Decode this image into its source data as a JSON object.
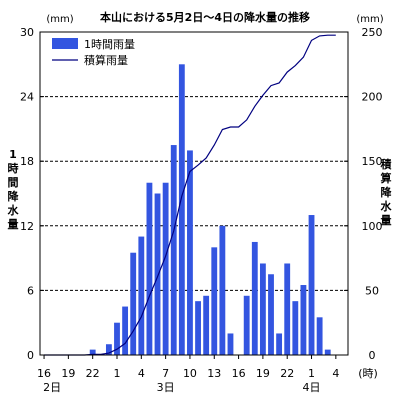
{
  "chart_data": {
    "type": "bar+line",
    "title": "本山における5月2日～4日の降水量の推移",
    "left_unit": "(mm)",
    "right_unit": "(mm)",
    "ylabel_left": "1時間降水量",
    "ylabel_right": "積算降水量",
    "ylim_left": [
      0,
      30
    ],
    "ylim_right": [
      0,
      250
    ],
    "yticks_left": [
      "0",
      "6",
      "12",
      "18",
      "24",
      "30"
    ],
    "yticks_right": [
      "0",
      "50",
      "100",
      "150",
      "200",
      "250"
    ],
    "grid": "horizontal dashed",
    "legend_position": "top-left",
    "legend": [
      {
        "label": "1時間雨量",
        "kind": "bar"
      },
      {
        "label": "積算雨量",
        "kind": "line"
      }
    ],
    "x_tick_labels": [
      "16",
      "19",
      "22",
      "1",
      "4",
      "7",
      "10",
      "13",
      "16",
      "19",
      "22",
      "1",
      "4"
    ],
    "x_tick_hours": [
      16,
      19,
      22,
      25,
      28,
      31,
      34,
      37,
      40,
      43,
      46,
      49,
      52
    ],
    "x_unit": "(時)",
    "day_labels": [
      {
        "label": "2日",
        "hour": 17
      },
      {
        "label": "3日",
        "hour": 31
      },
      {
        "label": "4日",
        "hour": 49
      }
    ],
    "hours": [
      16,
      17,
      18,
      19,
      20,
      21,
      22,
      23,
      24,
      25,
      26,
      27,
      28,
      29,
      30,
      31,
      32,
      33,
      34,
      35,
      36,
      37,
      38,
      39,
      40,
      41,
      42,
      43,
      44,
      45,
      46,
      47,
      48,
      49,
      50,
      51,
      52
    ],
    "hourly_rain": [
      0,
      0,
      0,
      0,
      0,
      0,
      0.5,
      0,
      1,
      3,
      4.5,
      9.5,
      11,
      16,
      15,
      16,
      19.5,
      27,
      19,
      5,
      5.5,
      10,
      12,
      2,
      0,
      5.5,
      10.5,
      8.5,
      7.5,
      2,
      8.5,
      5,
      6.5,
      13,
      3.5,
      0.5,
      0
    ],
    "cumulative_rain": [
      0,
      0,
      0,
      0,
      0,
      0,
      0.5,
      0.5,
      1.5,
      4.5,
      9,
      18.5,
      29.5,
      45.5,
      60.5,
      76.5,
      96,
      123,
      142,
      147,
      152.5,
      162.5,
      174.5,
      176.5,
      176.5,
      182,
      192.5,
      201,
      208.5,
      210.5,
      219,
      224,
      230.5,
      243.5,
      247,
      247.5,
      247.5
    ],
    "colors": {
      "bar": "#3355e0",
      "line": "#000080",
      "grid": "#000000"
    }
  }
}
